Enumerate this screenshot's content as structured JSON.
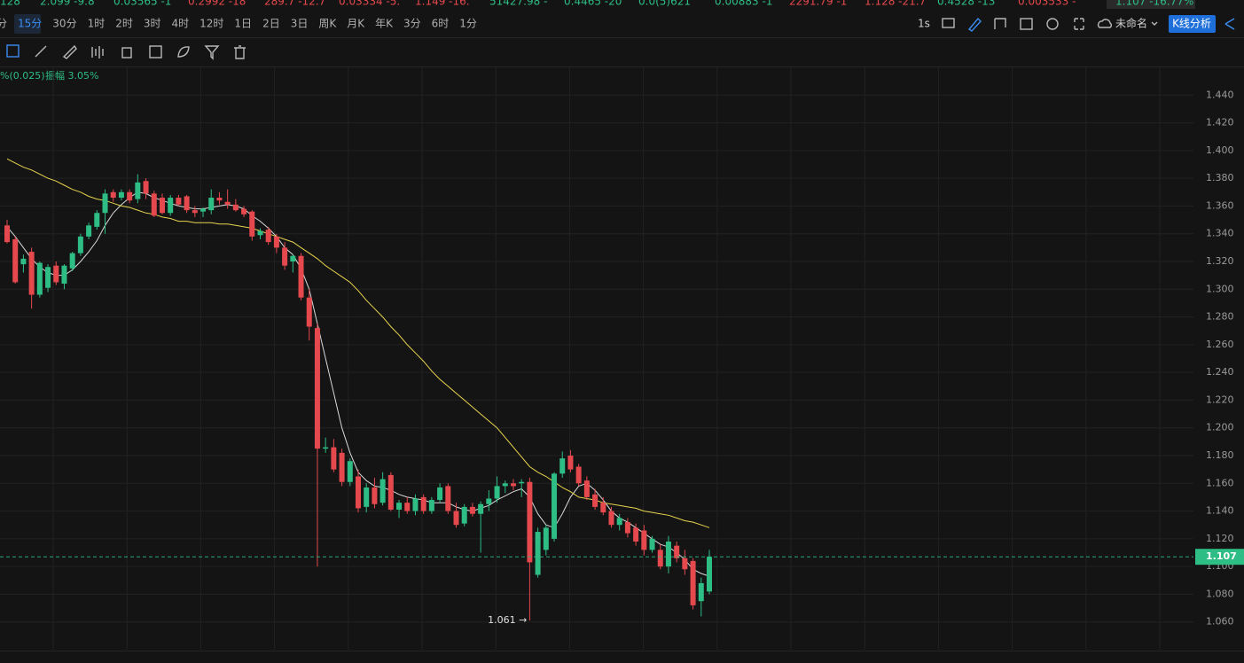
{
  "ticker": [
    {
      "text": "128",
      "up": true
    },
    {
      "text": "2.099 -9.8",
      "up": true
    },
    {
      "text": "0.03565 -1",
      "up": true
    },
    {
      "text": "0.2992 -18",
      "up": false
    },
    {
      "text": "289.7 -12.7",
      "up": false
    },
    {
      "text": "0.03334 -5.",
      "up": false
    },
    {
      "text": "1.149 -16.",
      "up": false
    },
    {
      "text": "51427.98 -",
      "up": true
    },
    {
      "text": "0.4465 -20",
      "up": true
    },
    {
      "text": "0.0(5)621",
      "up": true
    },
    {
      "text": "0.00883 -1",
      "up": true
    },
    {
      "text": "2291.79 -1",
      "up": false
    },
    {
      "text": "1.128 -21.7",
      "up": false
    },
    {
      "text": "0.4528 -13",
      "up": true
    },
    {
      "text": "0.003533 -",
      "up": false
    },
    {
      "text": "1.107 -16.77%",
      "up": true
    }
  ],
  "timeframes": {
    "items": [
      "分",
      "15分",
      "30分",
      "1时",
      "2时",
      "3时",
      "4时",
      "12时",
      "1日",
      "2日",
      "3日",
      "周K",
      "月K",
      "年K",
      "3分",
      "6时",
      "1分"
    ],
    "selected": 1
  },
  "toolbar_right": {
    "interval": "1s",
    "layout_name": "未命名",
    "analysis": "K线分析"
  },
  "info": {
    "change": "%(0.025)",
    "amplitude": "振幅 3.05%"
  },
  "chart_data": {
    "type": "candlestick",
    "up_color": "#2ebd85",
    "down_color": "#e5484d",
    "grid": true,
    "ylim": [
      1.04,
      1.46
    ],
    "yticks": [
      {
        "value": 1.06,
        "label": "1.060"
      },
      {
        "value": 1.08,
        "label": "1.080"
      },
      {
        "value": 1.1,
        "label": "1.100"
      },
      {
        "value": 1.12,
        "label": "1.120"
      },
      {
        "value": 1.14,
        "label": "1.140"
      },
      {
        "value": 1.16,
        "label": "1.160"
      },
      {
        "value": 1.18,
        "label": "1.180"
      },
      {
        "value": 1.2,
        "label": "1.200"
      },
      {
        "value": 1.22,
        "label": "1.220"
      },
      {
        "value": 1.24,
        "label": "1.240"
      },
      {
        "value": 1.26,
        "label": "1.260"
      },
      {
        "value": 1.28,
        "label": "1.280"
      },
      {
        "value": 1.3,
        "label": "1.300"
      },
      {
        "value": 1.32,
        "label": "1.320"
      },
      {
        "value": 1.34,
        "label": "1.340"
      },
      {
        "value": 1.36,
        "label": "1.360"
      },
      {
        "value": 1.38,
        "label": "1.380"
      },
      {
        "value": 1.4,
        "label": "1.400"
      },
      {
        "value": 1.42,
        "label": "1.420"
      },
      {
        "value": 1.44,
        "label": "1.440"
      }
    ],
    "open": [
      1.346,
      1.336,
      1.318,
      1.327,
      1.296,
      1.301,
      1.317,
      1.304,
      1.315,
      1.326,
      1.338,
      1.345,
      1.355,
      1.37,
      1.366,
      1.37,
      1.365,
      1.378,
      1.369,
      1.366,
      1.355,
      1.366,
      1.367,
      1.357,
      1.356,
      1.357,
      1.366,
      1.363,
      1.361,
      1.358,
      1.356,
      1.339,
      1.343,
      1.338,
      1.33,
      1.32,
      1.324,
      1.294,
      1.272,
      1.185,
      1.186,
      1.182,
      1.161,
      1.165,
      1.143,
      1.157,
      1.146,
      1.166,
      1.141,
      1.146,
      1.14,
      1.15,
      1.14,
      1.148,
      1.158,
      1.14,
      1.131,
      1.143,
      1.138,
      1.145,
      1.149,
      1.158,
      1.16,
      1.16,
      1.161,
      1.094,
      1.112,
      1.12,
      1.167,
      1.18,
      1.172,
      1.162,
      1.152,
      1.146,
      1.14,
      1.13,
      1.132,
      1.128,
      1.126,
      1.112,
      1.112,
      1.1,
      1.115,
      1.106,
      1.104,
      1.075,
      1.082
    ],
    "high": [
      1.35,
      1.338,
      1.325,
      1.33,
      1.32,
      1.318,
      1.32,
      1.318,
      1.327,
      1.34,
      1.348,
      1.357,
      1.372,
      1.372,
      1.372,
      1.372,
      1.383,
      1.38,
      1.371,
      1.369,
      1.368,
      1.368,
      1.368,
      1.36,
      1.359,
      1.372,
      1.37,
      1.372,
      1.365,
      1.36,
      1.357,
      1.344,
      1.345,
      1.34,
      1.334,
      1.325,
      1.326,
      1.3,
      1.275,
      1.193,
      1.192,
      1.185,
      1.178,
      1.17,
      1.16,
      1.164,
      1.168,
      1.168,
      1.148,
      1.15,
      1.152,
      1.152,
      1.15,
      1.16,
      1.16,
      1.146,
      1.145,
      1.146,
      1.147,
      1.155,
      1.165,
      1.162,
      1.163,
      1.163,
      1.164,
      1.128,
      1.13,
      1.168,
      1.183,
      1.184,
      1.174,
      1.165,
      1.156,
      1.15,
      1.143,
      1.138,
      1.135,
      1.131,
      1.13,
      1.122,
      1.116,
      1.122,
      1.118,
      1.112,
      1.106,
      1.092,
      1.112
    ],
    "low": [
      1.333,
      1.304,
      1.312,
      1.286,
      1.294,
      1.298,
      1.303,
      1.3,
      1.313,
      1.324,
      1.336,
      1.343,
      1.34,
      1.363,
      1.364,
      1.362,
      1.362,
      1.365,
      1.352,
      1.354,
      1.353,
      1.36,
      1.355,
      1.352,
      1.352,
      1.354,
      1.361,
      1.358,
      1.356,
      1.352,
      1.335,
      1.336,
      1.332,
      1.326,
      1.314,
      1.312,
      1.292,
      1.263,
      1.1,
      1.182,
      1.168,
      1.158,
      1.158,
      1.139,
      1.139,
      1.142,
      1.144,
      1.14,
      1.135,
      1.138,
      1.137,
      1.138,
      1.138,
      1.146,
      1.138,
      1.128,
      1.129,
      1.136,
      1.11,
      1.14,
      1.146,
      1.153,
      1.155,
      1.15,
      1.061,
      1.092,
      1.108,
      1.118,
      1.164,
      1.168,
      1.158,
      1.148,
      1.141,
      1.137,
      1.128,
      1.126,
      1.121,
      1.115,
      1.108,
      1.11,
      1.098,
      1.095,
      1.103,
      1.094,
      1.069,
      1.064,
      1.08
    ],
    "close": [
      1.334,
      1.305,
      1.322,
      1.296,
      1.319,
      1.316,
      1.305,
      1.317,
      1.326,
      1.338,
      1.346,
      1.355,
      1.369,
      1.366,
      1.37,
      1.364,
      1.377,
      1.369,
      1.353,
      1.355,
      1.366,
      1.361,
      1.357,
      1.355,
      1.358,
      1.366,
      1.364,
      1.361,
      1.357,
      1.354,
      1.338,
      1.342,
      1.334,
      1.33,
      1.317,
      1.324,
      1.294,
      1.273,
      1.185,
      1.186,
      1.17,
      1.161,
      1.176,
      1.142,
      1.157,
      1.145,
      1.163,
      1.141,
      1.146,
      1.14,
      1.149,
      1.14,
      1.148,
      1.157,
      1.14,
      1.13,
      1.143,
      1.138,
      1.145,
      1.149,
      1.158,
      1.16,
      1.158,
      1.161,
      1.103,
      1.125,
      1.128,
      1.167,
      1.178,
      1.17,
      1.16,
      1.15,
      1.143,
      1.139,
      1.13,
      1.135,
      1.124,
      1.118,
      1.112,
      1.12,
      1.1,
      1.118,
      1.106,
      1.098,
      1.072,
      1.088,
      1.107
    ],
    "lines": [
      {
        "color": "#d9d9d9",
        "values": [
          1.345,
          1.338,
          1.33,
          1.322,
          1.316,
          1.312,
          1.31,
          1.31,
          1.314,
          1.32,
          1.327,
          1.335,
          1.346,
          1.355,
          1.361,
          1.366,
          1.37,
          1.369,
          1.366,
          1.364,
          1.362,
          1.36,
          1.359,
          1.358,
          1.358,
          1.359,
          1.36,
          1.361,
          1.36,
          1.358,
          1.353,
          1.349,
          1.344,
          1.338,
          1.33,
          1.325,
          1.315,
          1.3,
          1.275,
          1.25,
          1.225,
          1.2,
          1.182,
          1.168,
          1.162,
          1.158,
          1.157,
          1.155,
          1.152,
          1.15,
          1.149,
          1.148,
          1.146,
          1.146,
          1.146,
          1.143,
          1.141,
          1.14,
          1.142,
          1.144,
          1.148,
          1.151,
          1.154,
          1.156,
          1.15,
          1.138,
          1.13,
          1.128,
          1.138,
          1.15,
          1.158,
          1.16,
          1.155,
          1.148,
          1.14,
          1.135,
          1.132,
          1.128,
          1.124,
          1.12,
          1.116,
          1.114,
          1.11,
          1.105,
          1.098,
          1.095,
          1.093
        ]
      },
      {
        "color": "#e8d44d",
        "values": [
          1.394,
          1.391,
          1.388,
          1.386,
          1.383,
          1.38,
          1.378,
          1.375,
          1.372,
          1.37,
          1.367,
          1.365,
          1.364,
          1.362,
          1.36,
          1.359,
          1.357,
          1.355,
          1.354,
          1.352,
          1.351,
          1.349,
          1.349,
          1.348,
          1.348,
          1.348,
          1.347,
          1.347,
          1.346,
          1.345,
          1.344,
          1.342,
          1.34,
          1.338,
          1.336,
          1.334,
          1.33,
          1.326,
          1.322,
          1.317,
          1.313,
          1.309,
          1.305,
          1.299,
          1.292,
          1.286,
          1.28,
          1.273,
          1.267,
          1.26,
          1.254,
          1.248,
          1.241,
          1.235,
          1.23,
          1.225,
          1.22,
          1.215,
          1.21,
          1.205,
          1.2,
          1.193,
          1.186,
          1.179,
          1.172,
          1.168,
          1.165,
          1.161,
          1.157,
          1.154,
          1.15,
          1.149,
          1.148,
          1.146,
          1.145,
          1.144,
          1.143,
          1.142,
          1.14,
          1.139,
          1.138,
          1.137,
          1.135,
          1.133,
          1.132,
          1.13,
          1.128
        ]
      }
    ],
    "last_price": 1.107,
    "annotation": {
      "text": "1.061 →",
      "index": 64
    }
  }
}
